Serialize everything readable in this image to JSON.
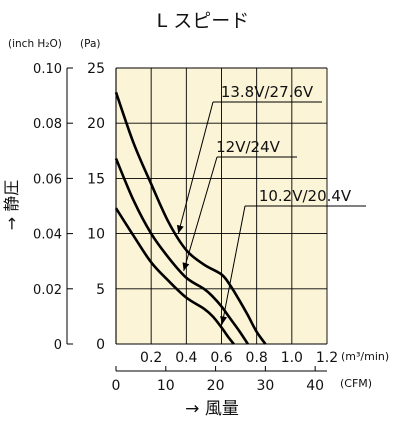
{
  "chart_data": {
    "type": "line",
    "title": "L スピード",
    "unit_inch_h2o": "(inch H₂O)",
    "unit_pa": "(Pa)",
    "ylabel": "→ 静圧",
    "xlabel": "→ 風量",
    "x_unit_m3": "(m³/min)",
    "x_unit_cfm": "(CFM)",
    "xlim": [
      0,
      1.2
    ],
    "ylim": [
      0,
      25
    ],
    "cfm_lim": [
      0,
      42.38
    ],
    "x_ticks": [
      "0.2",
      "0.4",
      "0.6",
      "0.8",
      "1.0",
      "1.2"
    ],
    "x_tick_values": [
      0.2,
      0.4,
      0.6,
      0.8,
      1.0,
      1.2
    ],
    "cfm_ticks": [
      "0",
      "10",
      "20",
      "30",
      "40"
    ],
    "cfm_tick_values": [
      0,
      10,
      20,
      30,
      40
    ],
    "pa_ticks": [
      "0",
      "5",
      "10",
      "15",
      "20",
      "25"
    ],
    "pa_tick_values": [
      0,
      5,
      10,
      15,
      20,
      25
    ],
    "inch_ticks": [
      "0",
      "0.02",
      "0.04",
      "0.06",
      "0.08",
      "0.10"
    ],
    "inch_tick_values": [
      0,
      0.02,
      0.04,
      0.06,
      0.08,
      0.1
    ],
    "grid": true,
    "background_color": "#fbf4d6",
    "line_color": "#000000",
    "series": [
      {
        "name": "13.8V/27.6V",
        "x": [
          0,
          0.1,
          0.2,
          0.3,
          0.4,
          0.5,
          0.6,
          0.65,
          0.7,
          0.75,
          0.8,
          0.85
        ],
        "y": [
          22.8,
          18.2,
          14.5,
          11.0,
          8.5,
          7.2,
          6.3,
          5.3,
          4.0,
          2.6,
          1.1,
          0
        ]
      },
      {
        "name": "12V/24V",
        "x": [
          0,
          0.1,
          0.2,
          0.3,
          0.4,
          0.5,
          0.55,
          0.6,
          0.65,
          0.7,
          0.75
        ],
        "y": [
          16.8,
          13.0,
          10.0,
          7.8,
          6.0,
          5.0,
          4.3,
          3.4,
          2.3,
          1.2,
          0
        ]
      },
      {
        "name": "10.2V/20.4V",
        "x": [
          0,
          0.1,
          0.2,
          0.3,
          0.4,
          0.5,
          0.55,
          0.6,
          0.64,
          0.67
        ],
        "y": [
          12.3,
          9.8,
          7.4,
          5.7,
          4.2,
          3.2,
          2.5,
          1.5,
          0.6,
          0
        ]
      }
    ],
    "annotations": [
      {
        "text": "13.8V/27.6V",
        "series": 0,
        "point_x": 0.35
      },
      {
        "text": "12V/24V",
        "series": 1,
        "point_x": 0.38
      },
      {
        "text": "10.2V/20.4V",
        "series": 2,
        "point_x": 0.6
      }
    ]
  }
}
